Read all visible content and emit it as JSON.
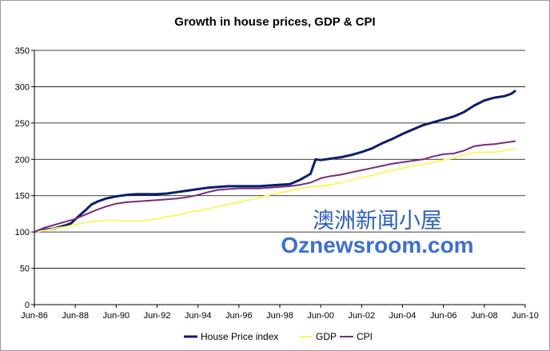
{
  "watermark": {
    "line1": "澳洲新闻小屋",
    "line2": "Oznewsroom.com"
  },
  "chart_data": {
    "type": "line",
    "title": "Growth in house prices, GDP & CPI",
    "xlabel": "",
    "ylabel": "",
    "ylim": [
      0,
      350
    ],
    "yticks": [
      0,
      50,
      100,
      150,
      200,
      250,
      300,
      350
    ],
    "xlim": [
      1986.5,
      2010.5
    ],
    "xticks": [
      {
        "x": 1986.5,
        "label": "Jun-86"
      },
      {
        "x": 1988.5,
        "label": "Jun-88"
      },
      {
        "x": 1990.5,
        "label": "Jun-90"
      },
      {
        "x": 1992.5,
        "label": "Jun-92"
      },
      {
        "x": 1994.5,
        "label": "Jun-94"
      },
      {
        "x": 1996.5,
        "label": "Jun-96"
      },
      {
        "x": 1998.5,
        "label": "Jun-98"
      },
      {
        "x": 2000.5,
        "label": "Jun-00"
      },
      {
        "x": 2002.5,
        "label": "Jun-02"
      },
      {
        "x": 2004.5,
        "label": "Jun-04"
      },
      {
        "x": 2006.5,
        "label": "Jun-06"
      },
      {
        "x": 2008.5,
        "label": "Jun-08"
      },
      {
        "x": 2010.5,
        "label": "Jun-10"
      }
    ],
    "grid": {
      "horizontal": true,
      "vertical": false
    },
    "legend_position": "bottom",
    "series": [
      {
        "name": "House Price index",
        "color": "#0b1e6b",
        "points": [
          [
            1986.5,
            100
          ],
          [
            1987.0,
            103
          ],
          [
            1987.5,
            105
          ],
          [
            1988.0,
            109
          ],
          [
            1988.3,
            112
          ],
          [
            1988.6,
            120
          ],
          [
            1989.0,
            130
          ],
          [
            1989.3,
            138
          ],
          [
            1989.6,
            142
          ],
          [
            1990.0,
            146
          ],
          [
            1990.5,
            149
          ],
          [
            1991.0,
            151
          ],
          [
            1991.5,
            152
          ],
          [
            1992.0,
            152
          ],
          [
            1992.5,
            152
          ],
          [
            1993.0,
            153
          ],
          [
            1993.5,
            155
          ],
          [
            1994.0,
            157
          ],
          [
            1994.5,
            159
          ],
          [
            1995.0,
            161
          ],
          [
            1995.5,
            162
          ],
          [
            1996.0,
            163
          ],
          [
            1996.5,
            163
          ],
          [
            1997.0,
            163
          ],
          [
            1997.5,
            163
          ],
          [
            1998.0,
            164
          ],
          [
            1998.5,
            165
          ],
          [
            1999.0,
            166
          ],
          [
            1999.5,
            172
          ],
          [
            2000.0,
            180
          ],
          [
            2000.25,
            200
          ],
          [
            2000.5,
            199
          ],
          [
            2001.0,
            201
          ],
          [
            2001.5,
            203
          ],
          [
            2002.0,
            206
          ],
          [
            2002.5,
            210
          ],
          [
            2003.0,
            215
          ],
          [
            2003.5,
            222
          ],
          [
            2004.0,
            228
          ],
          [
            2004.5,
            235
          ],
          [
            2005.0,
            241
          ],
          [
            2005.5,
            247
          ],
          [
            2006.0,
            251
          ],
          [
            2006.5,
            255
          ],
          [
            2007.0,
            259
          ],
          [
            2007.5,
            265
          ],
          [
            2008.0,
            274
          ],
          [
            2008.5,
            281
          ],
          [
            2009.0,
            285
          ],
          [
            2009.5,
            287
          ],
          [
            2009.8,
            290
          ],
          [
            2010.0,
            294
          ]
        ]
      },
      {
        "name": "GDP",
        "color": "#f8f86a",
        "points": [
          [
            1986.5,
            100
          ],
          [
            1987.0,
            102
          ],
          [
            1987.5,
            105
          ],
          [
            1988.0,
            107
          ],
          [
            1988.5,
            110
          ],
          [
            1989.0,
            113
          ],
          [
            1989.5,
            115
          ],
          [
            1990.0,
            116
          ],
          [
            1990.5,
            116
          ],
          [
            1991.0,
            115
          ],
          [
            1991.5,
            115
          ],
          [
            1992.0,
            116
          ],
          [
            1992.5,
            118
          ],
          [
            1993.0,
            121
          ],
          [
            1993.5,
            123
          ],
          [
            1994.0,
            127
          ],
          [
            1994.5,
            129
          ],
          [
            1995.0,
            132
          ],
          [
            1995.5,
            135
          ],
          [
            1996.0,
            138
          ],
          [
            1996.5,
            141
          ],
          [
            1997.0,
            144
          ],
          [
            1997.5,
            147
          ],
          [
            1998.0,
            151
          ],
          [
            1998.5,
            154
          ],
          [
            1999.0,
            157
          ],
          [
            1999.5,
            160
          ],
          [
            2000.0,
            162
          ],
          [
            2000.5,
            163
          ],
          [
            2001.0,
            165
          ],
          [
            2001.5,
            168
          ],
          [
            2002.0,
            172
          ],
          [
            2002.5,
            175
          ],
          [
            2003.0,
            178
          ],
          [
            2003.5,
            182
          ],
          [
            2004.0,
            185
          ],
          [
            2004.5,
            188
          ],
          [
            2005.0,
            191
          ],
          [
            2005.5,
            193
          ],
          [
            2006.0,
            196
          ],
          [
            2006.5,
            199
          ],
          [
            2007.0,
            202
          ],
          [
            2007.5,
            206
          ],
          [
            2008.0,
            209
          ],
          [
            2008.5,
            210
          ],
          [
            2009.0,
            210
          ],
          [
            2009.5,
            212
          ],
          [
            2010.0,
            215
          ]
        ]
      },
      {
        "name": "CPI",
        "color": "#7b2a7e",
        "points": [
          [
            1986.5,
            100
          ],
          [
            1987.0,
            106
          ],
          [
            1987.5,
            110
          ],
          [
            1988.0,
            114
          ],
          [
            1988.5,
            118
          ],
          [
            1989.0,
            124
          ],
          [
            1989.5,
            130
          ],
          [
            1990.0,
            135
          ],
          [
            1990.5,
            139
          ],
          [
            1991.0,
            141
          ],
          [
            1991.5,
            142
          ],
          [
            1992.0,
            143
          ],
          [
            1992.5,
            144
          ],
          [
            1993.0,
            145
          ],
          [
            1993.5,
            146
          ],
          [
            1994.0,
            148
          ],
          [
            1994.5,
            151
          ],
          [
            1995.0,
            155
          ],
          [
            1995.5,
            158
          ],
          [
            1996.0,
            159
          ],
          [
            1996.5,
            160
          ],
          [
            1997.0,
            160
          ],
          [
            1997.5,
            160
          ],
          [
            1998.0,
            161
          ],
          [
            1998.5,
            162
          ],
          [
            1999.0,
            163
          ],
          [
            1999.5,
            165
          ],
          [
            2000.0,
            168
          ],
          [
            2000.5,
            174
          ],
          [
            2001.0,
            177
          ],
          [
            2001.5,
            179
          ],
          [
            2002.0,
            182
          ],
          [
            2002.5,
            185
          ],
          [
            2003.0,
            188
          ],
          [
            2003.5,
            191
          ],
          [
            2004.0,
            194
          ],
          [
            2004.5,
            196
          ],
          [
            2005.0,
            198
          ],
          [
            2005.5,
            200
          ],
          [
            2006.0,
            204
          ],
          [
            2006.5,
            207
          ],
          [
            2007.0,
            208
          ],
          [
            2007.5,
            212
          ],
          [
            2008.0,
            218
          ],
          [
            2008.5,
            220
          ],
          [
            2009.0,
            221
          ],
          [
            2009.5,
            223
          ],
          [
            2010.0,
            225
          ]
        ]
      }
    ]
  }
}
